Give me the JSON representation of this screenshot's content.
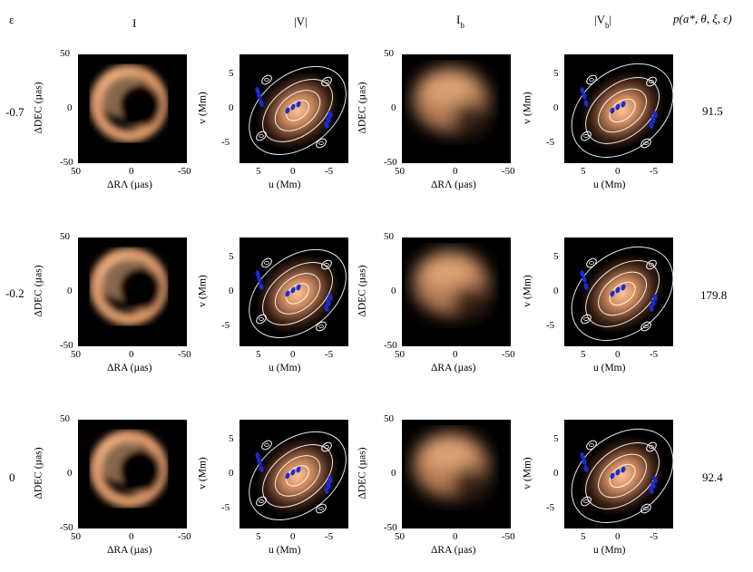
{
  "headers": {
    "eps": "ε",
    "I": "I",
    "V": "|V|",
    "Ib_main": "I",
    "Ib_sub": "b",
    "Vb_open": "|V",
    "Vb_sub": "b",
    "Vb_close": "|",
    "p": "p(a*, θ, ξ, ε)"
  },
  "rows": [
    {
      "eps": "-0.7",
      "p": "91.5"
    },
    {
      "eps": "-0.2",
      "p": "179.8"
    },
    {
      "eps": "0",
      "p": "92.4"
    }
  ],
  "image_axes": {
    "x_label_row1": "ΔRΛ (µas)",
    "x_label": "ΔRA (µas)",
    "y_label": "ΔDEC (µas)",
    "x_ticks": [
      "50",
      "0",
      "-50"
    ],
    "y_ticks": [
      "50",
      "0",
      "-50"
    ]
  },
  "vis_axes": {
    "x_label": "u (Mm)",
    "y_label": "v (Mm)",
    "x_ticks": [
      "5",
      "0",
      "-5"
    ],
    "y_ticks": [
      "5",
      "0",
      "-5"
    ]
  },
  "colors": {
    "background": "#000000",
    "glow": "#f0b080",
    "contour": "#ffffff",
    "uv_points": "#1a2bd6"
  }
}
